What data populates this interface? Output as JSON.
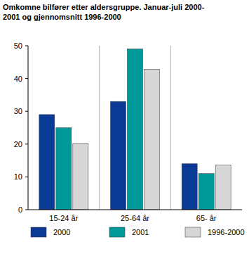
{
  "chart_data": {
    "type": "bar",
    "title": "Omkomne bilfører etter aldersgruppe. Januar-juli 2000-2001 og gjennomsnitt 1996-2000",
    "categories": [
      "15-24 år",
      "25-64 år",
      "65- år"
    ],
    "series": [
      {
        "name": "2000",
        "color": "#0b3a96",
        "values": [
          29,
          33,
          14
        ]
      },
      {
        "name": "2001",
        "color": "#009999",
        "values": [
          25,
          49,
          11
        ]
      },
      {
        "name": "1996-2000",
        "color": "#d6d6d6",
        "values": [
          20.2,
          42.8,
          13.6
        ]
      }
    ],
    "ylim": [
      0,
      50
    ],
    "yticks": [
      0,
      10,
      20,
      30,
      40,
      50
    ],
    "grid": false,
    "legend": "bottom"
  }
}
